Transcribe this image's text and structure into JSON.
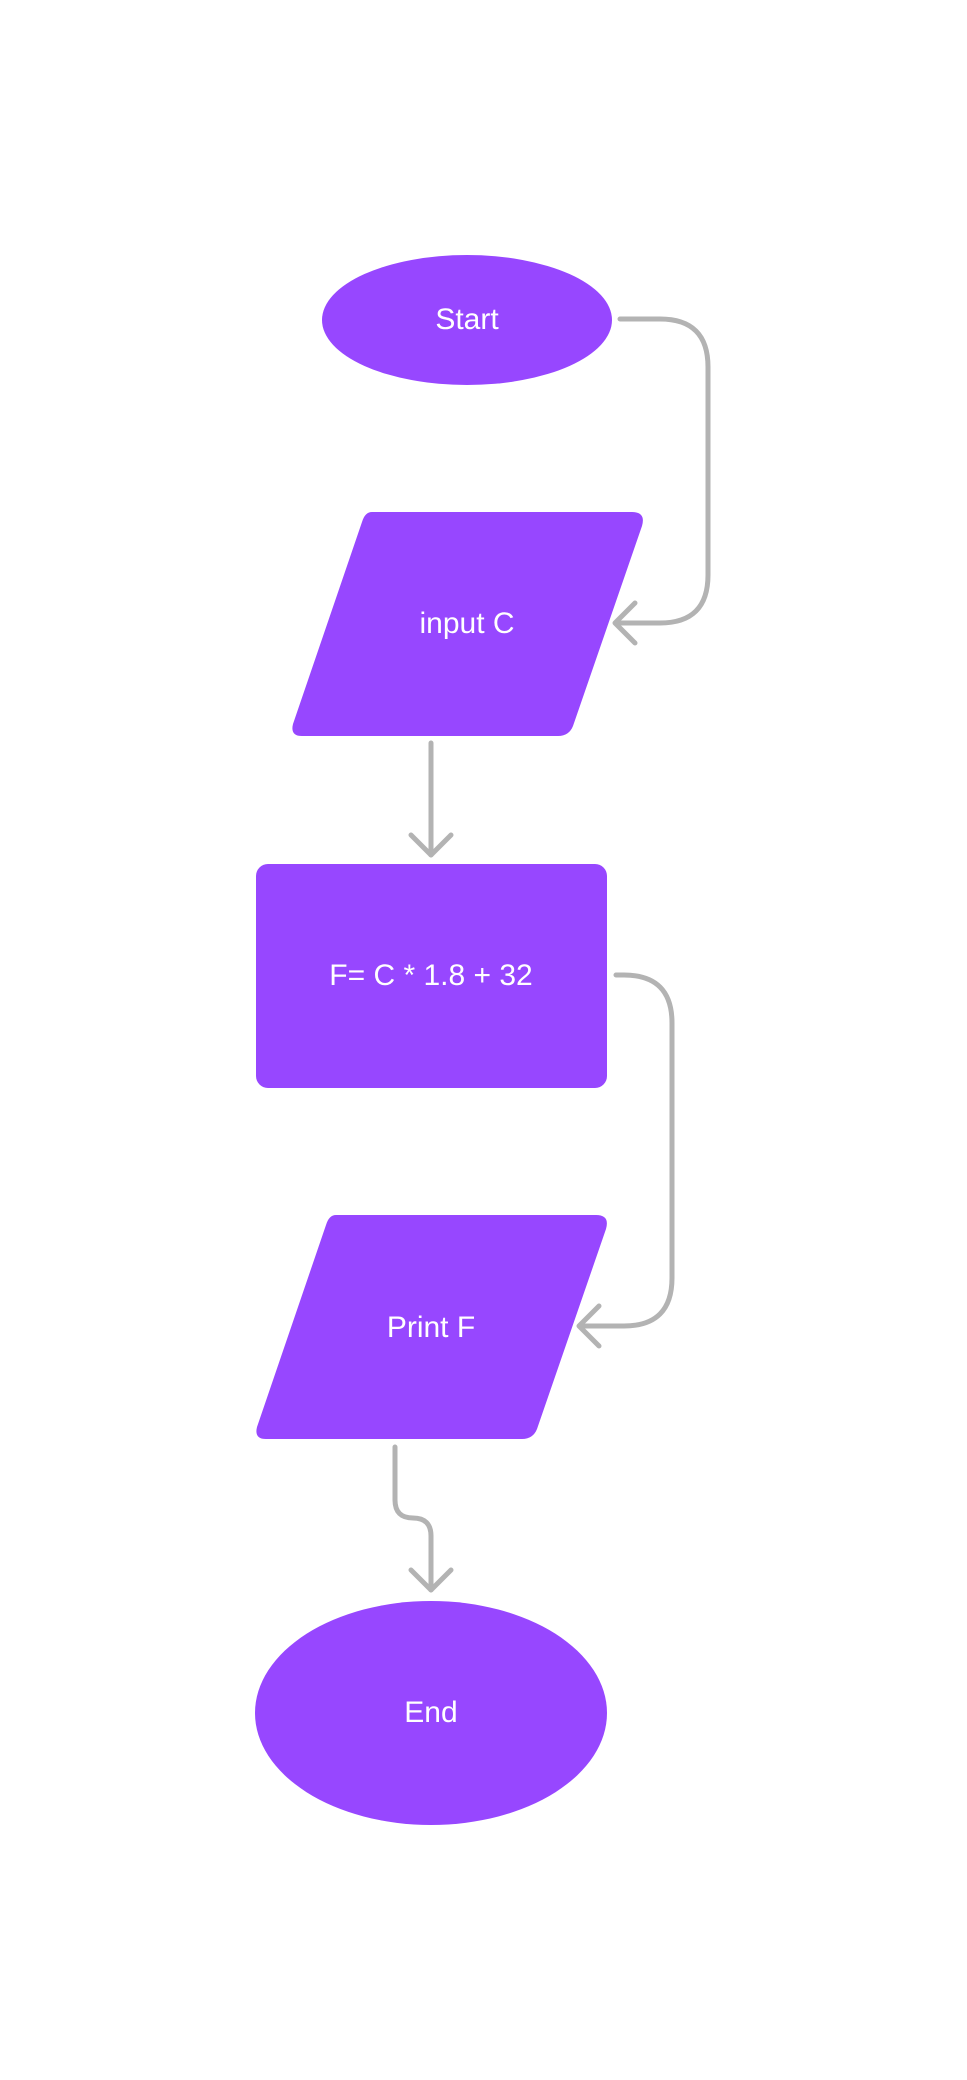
{
  "diagram": {
    "colors": {
      "background": "#ffffff",
      "node_fill": "#9747ff",
      "node_text": "#ffffff",
      "connector": "#b3b3b3"
    },
    "nodes": {
      "start": {
        "shape": "ellipse",
        "label": "Start"
      },
      "input": {
        "shape": "parallelogram",
        "label": "input C"
      },
      "process": {
        "shape": "rectangle",
        "label": "F= C * 1.8 + 32"
      },
      "print": {
        "shape": "parallelogram",
        "label": "Print F"
      },
      "end": {
        "shape": "ellipse",
        "label": "End"
      }
    },
    "edges": [
      {
        "from": "start",
        "to": "input"
      },
      {
        "from": "input",
        "to": "process"
      },
      {
        "from": "process",
        "to": "print"
      },
      {
        "from": "print",
        "to": "end"
      }
    ]
  }
}
